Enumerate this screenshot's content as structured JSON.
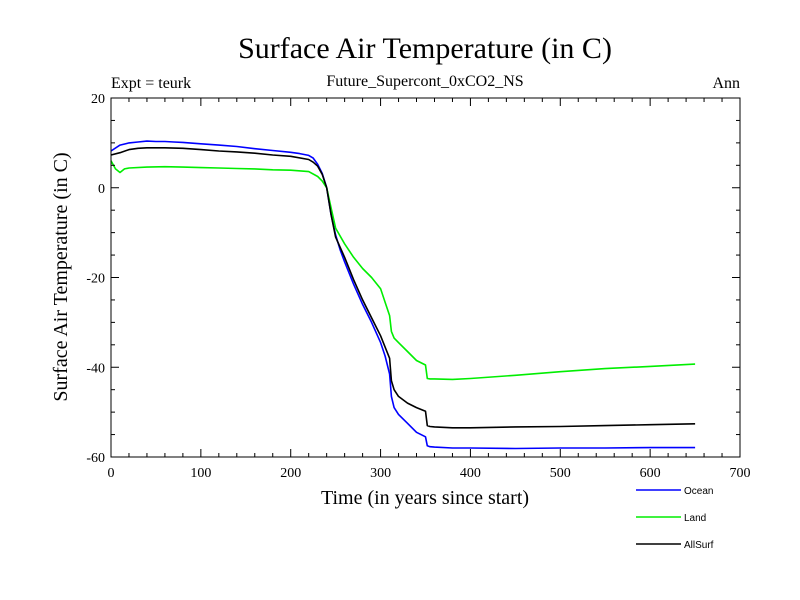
{
  "chart_data": {
    "type": "line",
    "title": "Surface Air Temperature (in C)",
    "subtitle": "Future_Supercont_0xCO2_NS",
    "left_label": "Expt = teurk",
    "right_label": "Ann",
    "xlabel": "Time (in years since start)",
    "ylabel": "Surface Air Temperature (in C)",
    "xlim": [
      0,
      700
    ],
    "ylim": [
      -60,
      20
    ],
    "xticks": [
      0,
      100,
      200,
      300,
      400,
      500,
      600,
      700
    ],
    "yticks": [
      -60,
      -40,
      -20,
      0,
      20
    ],
    "grid": false,
    "legend_position": "bottom-right",
    "series": [
      {
        "name": "Ocean",
        "color": "#0000ff",
        "x": [
          0,
          10,
          20,
          30,
          40,
          50,
          60,
          70,
          80,
          100,
          120,
          140,
          160,
          180,
          200,
          210,
          220,
          225,
          230,
          235,
          240,
          245,
          250,
          255,
          260,
          270,
          280,
          290,
          300,
          305,
          310,
          312,
          315,
          320,
          330,
          340,
          350,
          352,
          355,
          360,
          380,
          400,
          450,
          500,
          550,
          600,
          650
        ],
        "y": [
          8.2,
          9.5,
          10.0,
          10.2,
          10.4,
          10.3,
          10.3,
          10.2,
          10.1,
          9.8,
          9.5,
          9.2,
          8.7,
          8.3,
          7.9,
          7.6,
          7.2,
          6.6,
          5.2,
          3.2,
          0.0,
          -6.0,
          -10.5,
          -13.8,
          -16.5,
          -21.5,
          -26.0,
          -30.0,
          -34.5,
          -37.5,
          -41.5,
          -46.5,
          -49.0,
          -50.5,
          -52.5,
          -54.5,
          -55.5,
          -57.5,
          -57.7,
          -57.8,
          -58.0,
          -58.0,
          -58.1,
          -58.0,
          -58.0,
          -57.9,
          -57.9
        ]
      },
      {
        "name": "Land",
        "color": "#00ee00",
        "x": [
          0,
          5,
          10,
          15,
          20,
          40,
          60,
          80,
          100,
          120,
          140,
          160,
          180,
          200,
          220,
          230,
          235,
          240,
          245,
          250,
          260,
          270,
          280,
          290,
          300,
          305,
          310,
          312,
          315,
          320,
          330,
          340,
          350,
          352,
          355,
          360,
          380,
          400,
          450,
          500,
          550,
          600,
          650
        ],
        "y": [
          6.0,
          4.2,
          3.4,
          4.2,
          4.4,
          4.6,
          4.7,
          4.6,
          4.5,
          4.4,
          4.3,
          4.2,
          4.0,
          3.9,
          3.6,
          2.5,
          1.5,
          0.0,
          -4.5,
          -9.0,
          -12.5,
          -15.5,
          -18.0,
          -20.0,
          -22.5,
          -25.5,
          -28.5,
          -32.0,
          -33.5,
          -34.5,
          -36.5,
          -38.5,
          -39.5,
          -42.5,
          -42.6,
          -42.6,
          -42.7,
          -42.5,
          -41.8,
          -41.0,
          -40.3,
          -39.8,
          -39.3
        ]
      },
      {
        "name": "AllSurf",
        "color": "#000000",
        "x": [
          0,
          10,
          20,
          30,
          40,
          60,
          80,
          100,
          120,
          140,
          160,
          180,
          200,
          220,
          225,
          230,
          235,
          240,
          245,
          250,
          260,
          270,
          280,
          290,
          300,
          305,
          310,
          312,
          315,
          320,
          330,
          340,
          350,
          352,
          355,
          360,
          380,
          400,
          450,
          500,
          550,
          600,
          650
        ],
        "y": [
          7.3,
          7.8,
          8.5,
          8.8,
          8.9,
          8.9,
          8.8,
          8.5,
          8.2,
          8.0,
          7.7,
          7.3,
          7.0,
          6.3,
          5.7,
          4.8,
          3.0,
          0.0,
          -6.0,
          -11.0,
          -15.5,
          -20.5,
          -25.0,
          -29.0,
          -33.0,
          -35.5,
          -38.0,
          -43.0,
          -45.0,
          -46.5,
          -48.0,
          -49.0,
          -49.8,
          -53.0,
          -53.2,
          -53.3,
          -53.5,
          -53.5,
          -53.3,
          -53.2,
          -53.0,
          -52.8,
          -52.6
        ]
      }
    ]
  }
}
